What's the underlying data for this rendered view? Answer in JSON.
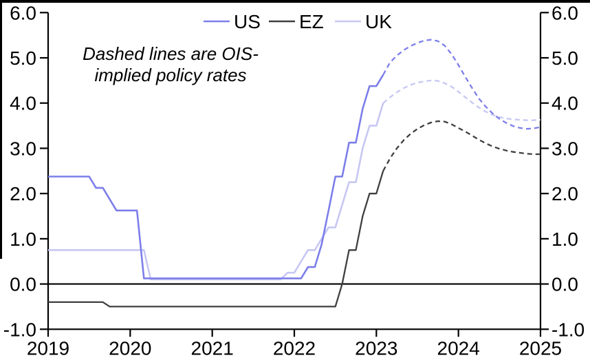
{
  "page": {
    "background": "#ffffff",
    "border_color": "#000000"
  },
  "chart_data": {
    "type": "line",
    "title": "",
    "xlabel": "",
    "ylabel": "",
    "xlim": [
      2019,
      2025
    ],
    "ylim": [
      -1,
      6
    ],
    "grid": false,
    "zero_line": true,
    "legend_position": "top-center",
    "dual_y_axis": true,
    "annotation_lines": [
      "Dashed lines are OIS-",
      "implied policy rates"
    ],
    "x_tick_values": [
      2019,
      2020,
      2021,
      2022,
      2023,
      2024,
      2025
    ],
    "x_tick_labels": [
      "2019",
      "2020",
      "2021",
      "2022",
      "2023",
      "2024",
      "2025"
    ],
    "y_tick_values": [
      -1,
      0,
      1,
      2,
      3,
      4,
      5,
      6
    ],
    "y_tick_labels": [
      "-1.0",
      "0.0",
      "1.0",
      "2.0",
      "3.0",
      "4.0",
      "5.0",
      "6.0"
    ],
    "legend": [
      "US",
      "EZ",
      "UK"
    ],
    "colors": {
      "US": "#7C7EE9",
      "EZ": "#3F3F3F",
      "UK": "#C6C7F2",
      "axis": "#000000"
    },
    "series": [
      {
        "name": "EZ",
        "style": "solid",
        "color": "#3F3F3F",
        "points": [
          [
            2019.0,
            -0.4
          ],
          [
            2019.667,
            -0.4
          ],
          [
            2019.75,
            -0.5
          ],
          [
            2022.5,
            -0.5
          ],
          [
            2022.583,
            0.0
          ],
          [
            2022.667,
            0.75
          ],
          [
            2022.75,
            0.75
          ],
          [
            2022.833,
            1.5
          ],
          [
            2022.917,
            2.0
          ],
          [
            2023.0,
            2.0
          ],
          [
            2023.083,
            2.5
          ]
        ]
      },
      {
        "name": "EZ",
        "style": "dashed",
        "color": "#3F3F3F",
        "points": [
          [
            2023.083,
            2.5
          ],
          [
            2023.167,
            2.78
          ],
          [
            2023.25,
            3.0
          ],
          [
            2023.333,
            3.18
          ],
          [
            2023.417,
            3.32
          ],
          [
            2023.5,
            3.43
          ],
          [
            2023.583,
            3.51
          ],
          [
            2023.667,
            3.57
          ],
          [
            2023.75,
            3.6
          ],
          [
            2023.833,
            3.59
          ],
          [
            2023.917,
            3.53
          ],
          [
            2024.0,
            3.45
          ],
          [
            2024.083,
            3.37
          ],
          [
            2024.167,
            3.28
          ],
          [
            2024.25,
            3.19
          ],
          [
            2024.333,
            3.11
          ],
          [
            2024.417,
            3.04
          ],
          [
            2024.5,
            2.99
          ],
          [
            2024.583,
            2.95
          ],
          [
            2024.667,
            2.92
          ],
          [
            2024.75,
            2.9
          ],
          [
            2024.833,
            2.88
          ],
          [
            2024.917,
            2.87
          ],
          [
            2025.0,
            2.87
          ]
        ]
      },
      {
        "name": "UK",
        "style": "solid",
        "color": "#C6C7F2",
        "points": [
          [
            2019.0,
            0.75
          ],
          [
            2020.167,
            0.75
          ],
          [
            2020.25,
            0.1
          ],
          [
            2021.833,
            0.1
          ],
          [
            2021.917,
            0.25
          ],
          [
            2022.0,
            0.25
          ],
          [
            2022.083,
            0.5
          ],
          [
            2022.167,
            0.75
          ],
          [
            2022.25,
            0.75
          ],
          [
            2022.333,
            1.0
          ],
          [
            2022.417,
            1.25
          ],
          [
            2022.5,
            1.25
          ],
          [
            2022.583,
            1.75
          ],
          [
            2022.667,
            2.25
          ],
          [
            2022.75,
            2.25
          ],
          [
            2022.833,
            3.0
          ],
          [
            2022.917,
            3.5
          ],
          [
            2023.0,
            3.5
          ],
          [
            2023.083,
            4.0
          ]
        ]
      },
      {
        "name": "UK",
        "style": "dashed",
        "color": "#C6C7F2",
        "points": [
          [
            2023.083,
            4.0
          ],
          [
            2023.167,
            4.13
          ],
          [
            2023.25,
            4.24
          ],
          [
            2023.333,
            4.33
          ],
          [
            2023.417,
            4.4
          ],
          [
            2023.5,
            4.45
          ],
          [
            2023.583,
            4.48
          ],
          [
            2023.667,
            4.5
          ],
          [
            2023.75,
            4.49
          ],
          [
            2023.833,
            4.44
          ],
          [
            2023.917,
            4.36
          ],
          [
            2024.0,
            4.25
          ],
          [
            2024.083,
            4.13
          ],
          [
            2024.167,
            4.01
          ],
          [
            2024.25,
            3.9
          ],
          [
            2024.333,
            3.81
          ],
          [
            2024.417,
            3.74
          ],
          [
            2024.5,
            3.69
          ],
          [
            2024.583,
            3.66
          ],
          [
            2024.667,
            3.64
          ],
          [
            2024.75,
            3.63
          ],
          [
            2024.833,
            3.62
          ],
          [
            2024.917,
            3.62
          ],
          [
            2025.0,
            3.63
          ]
        ]
      },
      {
        "name": "US",
        "style": "solid",
        "color": "#7C7EE9",
        "points": [
          [
            2019.0,
            2.375
          ],
          [
            2019.5,
            2.375
          ],
          [
            2019.583,
            2.125
          ],
          [
            2019.667,
            2.125
          ],
          [
            2019.75,
            1.875
          ],
          [
            2019.833,
            1.625
          ],
          [
            2020.083,
            1.625
          ],
          [
            2020.167,
            0.125
          ],
          [
            2022.083,
            0.125
          ],
          [
            2022.167,
            0.375
          ],
          [
            2022.25,
            0.375
          ],
          [
            2022.333,
            0.875
          ],
          [
            2022.417,
            1.625
          ],
          [
            2022.5,
            2.375
          ],
          [
            2022.583,
            2.375
          ],
          [
            2022.667,
            3.125
          ],
          [
            2022.75,
            3.125
          ],
          [
            2022.833,
            3.875
          ],
          [
            2022.917,
            4.375
          ],
          [
            2023.0,
            4.375
          ],
          [
            2023.083,
            4.625
          ]
        ]
      },
      {
        "name": "US",
        "style": "dashed",
        "color": "#7C7EE9",
        "points": [
          [
            2023.083,
            4.625
          ],
          [
            2023.167,
            4.9
          ],
          [
            2023.25,
            5.05
          ],
          [
            2023.333,
            5.17
          ],
          [
            2023.417,
            5.26
          ],
          [
            2023.5,
            5.33
          ],
          [
            2023.583,
            5.38
          ],
          [
            2023.667,
            5.4
          ],
          [
            2023.75,
            5.37
          ],
          [
            2023.833,
            5.27
          ],
          [
            2023.917,
            5.08
          ],
          [
            2024.0,
            4.84
          ],
          [
            2024.083,
            4.58
          ],
          [
            2024.167,
            4.33
          ],
          [
            2024.25,
            4.1
          ],
          [
            2024.333,
            3.92
          ],
          [
            2024.417,
            3.77
          ],
          [
            2024.5,
            3.65
          ],
          [
            2024.583,
            3.56
          ],
          [
            2024.667,
            3.49
          ],
          [
            2024.75,
            3.45
          ],
          [
            2024.833,
            3.43
          ],
          [
            2024.917,
            3.44
          ],
          [
            2025.0,
            3.47
          ]
        ]
      }
    ]
  }
}
